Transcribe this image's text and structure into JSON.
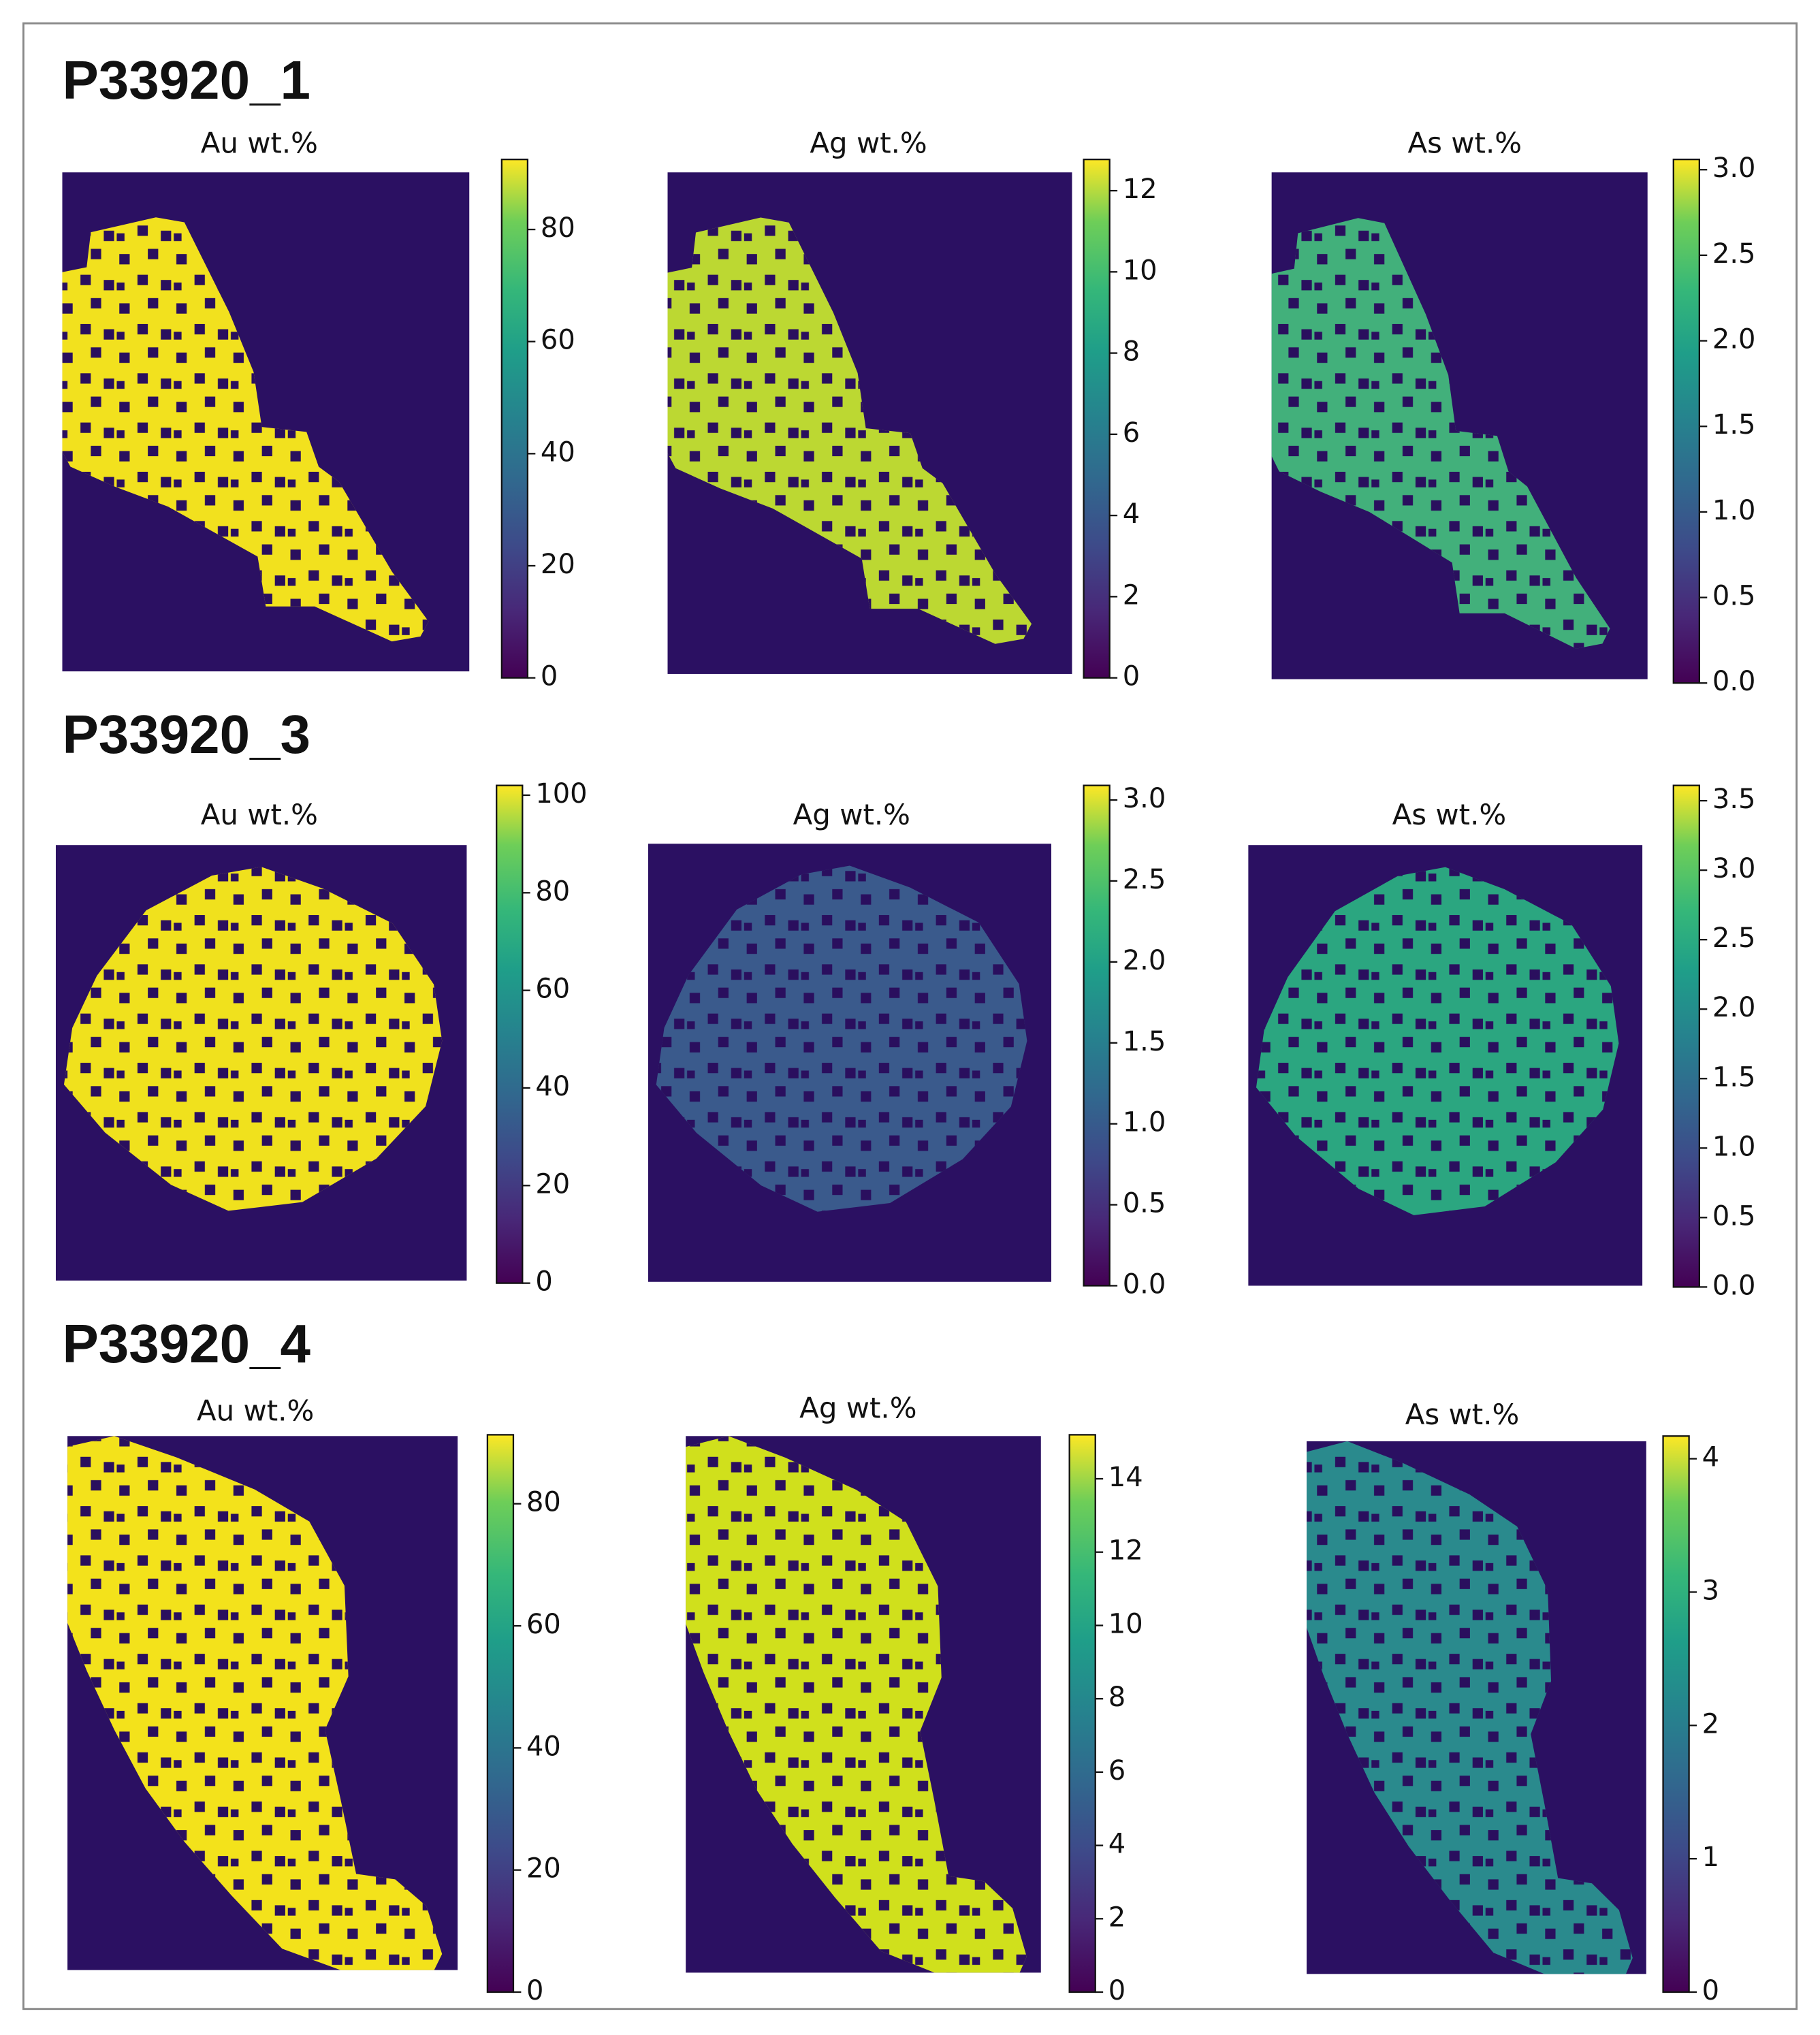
{
  "rows": [
    {
      "title": "P33920_1",
      "panels": [
        {
          "title": "Au wt.%",
          "clim": [
            0,
            92.5
          ],
          "ticks": [
            0,
            20,
            40,
            60,
            80
          ]
        },
        {
          "title": "Ag wt.%",
          "clim": [
            0,
            12.77
          ],
          "ticks": [
            0,
            2,
            4,
            6,
            8,
            10,
            12
          ]
        },
        {
          "title": "As wt.%",
          "clim": [
            0,
            3.06
          ],
          "ticks": [
            {
              "value": 0,
              "label": "0.0"
            },
            0.5,
            {
              "value": 1,
              "label": "1.0"
            },
            1.5,
            {
              "value": 2,
              "label": "2.0"
            },
            2.5,
            {
              "value": 3,
              "label": "3.0"
            }
          ]
        }
      ]
    },
    {
      "title": "P33920_3",
      "panels": [
        {
          "title": "Au wt.%",
          "clim": [
            0,
            102
          ],
          "ticks": [
            0,
            20,
            40,
            60,
            80,
            100
          ]
        },
        {
          "title": "Ag wt.%",
          "clim": [
            0,
            3.09
          ],
          "ticks": [
            {
              "value": 0,
              "label": "0.0"
            },
            0.5,
            {
              "value": 1,
              "label": "1.0"
            },
            1.5,
            {
              "value": 2,
              "label": "2.0"
            },
            2.5,
            {
              "value": 3,
              "label": "3.0"
            }
          ]
        },
        {
          "title": "As wt.%",
          "clim": [
            0,
            3.61
          ],
          "ticks": [
            {
              "value": 0,
              "label": "0.0"
            },
            0.5,
            {
              "value": 1,
              "label": "1.0"
            },
            1.5,
            {
              "value": 2,
              "label": "2.0"
            },
            2.5,
            {
              "value": 3,
              "label": "3.0"
            },
            3.5
          ]
        }
      ]
    },
    {
      "title": "P33920_4",
      "panels": [
        {
          "title": "Au wt.%",
          "clim": [
            0,
            91.3
          ],
          "ticks": [
            0,
            20,
            40,
            60,
            80
          ]
        },
        {
          "title": "Ag wt.%",
          "clim": [
            0,
            15.2
          ],
          "ticks": [
            0,
            2,
            4,
            6,
            8,
            10,
            12,
            14
          ]
        },
        {
          "title": "As wt.%",
          "clim": [
            0,
            4.17
          ],
          "ticks": [
            0,
            1,
            2,
            3,
            4
          ]
        }
      ]
    }
  ]
}
